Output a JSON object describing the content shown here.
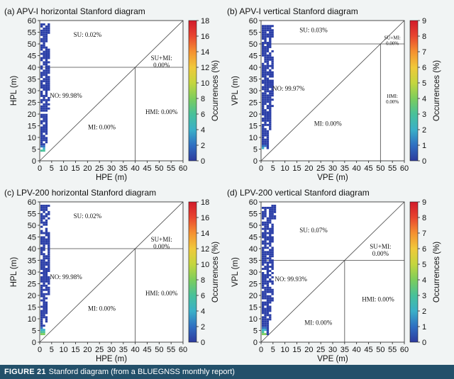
{
  "figure": {
    "number": "FIGURE 21",
    "caption": "Stanford diagram (from a BLUEGNSS monthly report)"
  },
  "colors": {
    "background": "#f1f4f4",
    "caption_bar": "#23506a",
    "point_blue": "#2b3fa8",
    "colorbar": [
      "#2e3b9e",
      "#2f6fc2",
      "#3ab0c8",
      "#48c19a",
      "#7ccd5c",
      "#c4d63e",
      "#f0c93a",
      "#f59130",
      "#e8452f",
      "#d11a2a"
    ]
  },
  "chart_data": [
    {
      "type": "heatmap",
      "title": "(a) APV-I horizontal Stanford diagram",
      "xlabel": "HPE (m)",
      "ylabel": "HPL (m)",
      "xlim": [
        0,
        60
      ],
      "ylim": [
        0,
        60
      ],
      "xticks": [
        0,
        5,
        10,
        15,
        20,
        25,
        30,
        35,
        40,
        45,
        50,
        55,
        60
      ],
      "yticks": [
        0,
        5,
        10,
        15,
        20,
        25,
        30,
        35,
        40,
        45,
        50,
        55,
        60
      ],
      "alert_limit": 40,
      "colorbar": {
        "label": "Occurrences (%)",
        "min": 0,
        "max": 18,
        "ticks": [
          0,
          2,
          4,
          6,
          8,
          10,
          12,
          14,
          16,
          18
        ]
      },
      "regions": [
        {
          "label": "SU: 0.02%",
          "x": 20,
          "y": 53
        },
        {
          "label": "SU+MI:",
          "label2": "0.00%",
          "x": 51,
          "y": 43
        },
        {
          "label": "NO: 99.98%",
          "x": 11,
          "y": 27
        },
        {
          "label": "HMI: 0.00%",
          "x": 51,
          "y": 20
        },
        {
          "label": "MI: 0.00%",
          "x": 26,
          "y": 13.5
        }
      ],
      "data_extent": {
        "x_max": 3.5,
        "y_min": 3,
        "y_max": 58
      }
    },
    {
      "type": "heatmap",
      "title": "(b) APV-I vertical Stanford diagram",
      "xlabel": "VPE (m)",
      "ylabel": "VPL (m)",
      "xlim": [
        0,
        60
      ],
      "ylim": [
        0,
        60
      ],
      "xticks": [
        0,
        5,
        10,
        15,
        20,
        25,
        30,
        35,
        40,
        45,
        50,
        55,
        60
      ],
      "yticks": [
        0,
        5,
        10,
        15,
        20,
        25,
        30,
        35,
        40,
        45,
        50,
        55,
        60
      ],
      "alert_limit": 50,
      "colorbar": {
        "label": "Occurrences (%)",
        "min": 0,
        "max": 9,
        "ticks": [
          0,
          1,
          2,
          3,
          4,
          5,
          6,
          7,
          8,
          9
        ]
      },
      "regions": [
        {
          "label": "SU: 0.03%",
          "x": 22,
          "y": 55
        },
        {
          "label": "SU+MI:",
          "label2": "0.00%",
          "x": 55,
          "y": 52,
          "small": true
        },
        {
          "label": "NO: 99.97%",
          "x": 11.5,
          "y": 30
        },
        {
          "label": "HMI:",
          "label2": "0.00%",
          "x": 55,
          "y": 27,
          "small": true
        },
        {
          "label": "MI: 0.00%",
          "x": 28,
          "y": 15
        }
      ],
      "data_extent": {
        "x_max": 4.5,
        "y_min": 5,
        "y_max": 58
      }
    },
    {
      "type": "heatmap",
      "title": "(c) LPV-200 horizontal Stanford diagram",
      "xlabel": "HPE (m)",
      "ylabel": "HPL (m)",
      "xlim": [
        0,
        60
      ],
      "ylim": [
        0,
        60
      ],
      "xticks": [
        0,
        5,
        10,
        15,
        20,
        25,
        30,
        35,
        40,
        45,
        50,
        55,
        60
      ],
      "yticks": [
        0,
        5,
        10,
        15,
        20,
        25,
        30,
        35,
        40,
        45,
        50,
        55,
        60
      ],
      "alert_limit": 40,
      "colorbar": {
        "label": "Occurrences (%)",
        "min": 0,
        "max": 18,
        "ticks": [
          0,
          2,
          4,
          6,
          8,
          10,
          12,
          14,
          16,
          18
        ]
      },
      "regions": [
        {
          "label": "SU: 0.02%",
          "x": 20,
          "y": 53
        },
        {
          "label": "SU+MI:",
          "label2": "0.00%",
          "x": 51,
          "y": 43
        },
        {
          "label": "NO: 99.98%",
          "x": 11,
          "y": 27
        },
        {
          "label": "HMI: 0.00%",
          "x": 51,
          "y": 20
        },
        {
          "label": "MI: 0.00%",
          "x": 26,
          "y": 13.5
        }
      ],
      "data_extent": {
        "x_max": 3.5,
        "y_min": 3,
        "y_max": 58
      }
    },
    {
      "type": "heatmap",
      "title": "(d) LPV-200 vertical Stanford diagram",
      "xlabel": "VPE (m)",
      "ylabel": "VPL (m)",
      "xlim": [
        0,
        60
      ],
      "ylim": [
        0,
        60
      ],
      "xticks": [
        0,
        5,
        10,
        15,
        20,
        25,
        30,
        35,
        40,
        45,
        50,
        55,
        60
      ],
      "yticks": [
        0,
        5,
        10,
        15,
        20,
        25,
        30,
        35,
        40,
        45,
        50,
        55,
        60
      ],
      "alert_limit": 35,
      "colorbar": {
        "label": "Occurrences (%)",
        "min": 0,
        "max": 9,
        "ticks": [
          0,
          1,
          2,
          3,
          4,
          5,
          6,
          7,
          8,
          9
        ]
      },
      "regions": [
        {
          "label": "SU: 0.07%",
          "x": 22,
          "y": 47
        },
        {
          "label": "SU+MI:",
          "label2": "0.00%",
          "x": 50,
          "y": 40
        },
        {
          "label": "NO: 99.93%",
          "x": 12.5,
          "y": 26
        },
        {
          "label": "HMI: 0.00%",
          "x": 49,
          "y": 17.5
        },
        {
          "label": "MI: 0.00%",
          "x": 24,
          "y": 7.5
        }
      ],
      "data_extent": {
        "x_max": 5,
        "y_min": 3,
        "y_max": 58
      }
    }
  ]
}
